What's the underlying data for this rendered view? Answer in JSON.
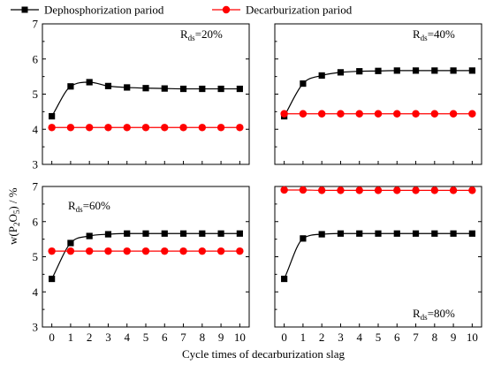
{
  "legend": {
    "items": [
      {
        "label": "Dephosphorization pariod",
        "color": "#000000",
        "marker": "square"
      },
      {
        "label": "Decarburization pariod",
        "color": "#ff0000",
        "marker": "circle"
      }
    ]
  },
  "y_axis_label": {
    "prefix": "w(P",
    "sub1": "2",
    "mid": "O",
    "sub2": "5",
    "suffix": ") / %"
  },
  "x_axis_label": "Cycle times of decarburization slag",
  "chart_data": [
    {
      "type": "line",
      "panel": "top-left",
      "annotation": {
        "main": "R",
        "sub": "ds",
        "rest": "=20%",
        "placement": "top-right"
      },
      "x": [
        0,
        1,
        2,
        3,
        4,
        5,
        6,
        7,
        8,
        9,
        10
      ],
      "series": [
        {
          "name": "Dephosphorization pariod",
          "values": [
            4.37,
            5.22,
            5.34,
            5.23,
            5.19,
            5.17,
            5.16,
            5.15,
            5.15,
            5.15,
            5.15
          ]
        },
        {
          "name": "Decarburization pariod",
          "values": [
            4.05,
            4.05,
            4.05,
            4.05,
            4.05,
            4.05,
            4.05,
            4.05,
            4.05,
            4.05,
            4.05
          ]
        }
      ],
      "xlim": [
        -0.5,
        10.5
      ],
      "ylim": [
        3,
        7
      ],
      "yticks": [
        3,
        4,
        5,
        6,
        7
      ],
      "xticks": [],
      "grid": false
    },
    {
      "type": "line",
      "panel": "top-right",
      "annotation": {
        "main": "R",
        "sub": "ds",
        "rest": "=40%",
        "placement": "top-right"
      },
      "x": [
        0,
        1,
        2,
        3,
        4,
        5,
        6,
        7,
        8,
        9,
        10
      ],
      "series": [
        {
          "name": "Dephosphorization pariod",
          "values": [
            4.37,
            5.3,
            5.53,
            5.62,
            5.65,
            5.66,
            5.67,
            5.67,
            5.67,
            5.67,
            5.67
          ]
        },
        {
          "name": "Decarburization pariod",
          "values": [
            4.44,
            4.44,
            4.44,
            4.44,
            4.44,
            4.44,
            4.44,
            4.44,
            4.44,
            4.44,
            4.44
          ]
        }
      ],
      "xlim": [
        -0.5,
        10.5
      ],
      "ylim": [
        3,
        7
      ],
      "yticks": [],
      "xticks": [],
      "grid": false
    },
    {
      "type": "line",
      "panel": "bottom-left",
      "annotation": {
        "main": "R",
        "sub": "ds",
        "rest": "=60%",
        "placement": "top-left"
      },
      "x": [
        0,
        1,
        2,
        3,
        4,
        5,
        6,
        7,
        8,
        9,
        10
      ],
      "series": [
        {
          "name": "Dephosphorization pariod",
          "values": [
            4.37,
            5.39,
            5.59,
            5.64,
            5.66,
            5.66,
            5.66,
            5.66,
            5.66,
            5.66,
            5.66
          ]
        },
        {
          "name": "Decarburization pariod",
          "values": [
            5.16,
            5.16,
            5.16,
            5.16,
            5.16,
            5.16,
            5.16,
            5.16,
            5.16,
            5.16,
            5.16
          ]
        }
      ],
      "xlim": [
        -0.5,
        10.5
      ],
      "ylim": [
        3,
        7
      ],
      "yticks": [
        3,
        4,
        5,
        6,
        7
      ],
      "xticks": [
        0,
        1,
        2,
        3,
        4,
        5,
        6,
        7,
        8,
        9,
        10
      ],
      "grid": false
    },
    {
      "type": "line",
      "panel": "bottom-right",
      "annotation": {
        "main": "R",
        "sub": "ds",
        "rest": "=80%",
        "placement": "bottom-right"
      },
      "x": [
        0,
        1,
        2,
        3,
        4,
        5,
        6,
        7,
        8,
        9,
        10
      ],
      "series": [
        {
          "name": "Dephosphorization pariod",
          "values": [
            4.37,
            5.52,
            5.64,
            5.66,
            5.66,
            5.66,
            5.66,
            5.66,
            5.66,
            5.66,
            5.66
          ]
        },
        {
          "name": "Decarburization pariod",
          "values": [
            6.9,
            6.9,
            6.89,
            6.89,
            6.89,
            6.89,
            6.89,
            6.89,
            6.89,
            6.89,
            6.89
          ]
        }
      ],
      "xlim": [
        -0.5,
        10.5
      ],
      "ylim": [
        3,
        7
      ],
      "yticks": [],
      "xticks": [
        0,
        1,
        2,
        3,
        4,
        5,
        6,
        7,
        8,
        9,
        10
      ],
      "grid": false
    }
  ]
}
